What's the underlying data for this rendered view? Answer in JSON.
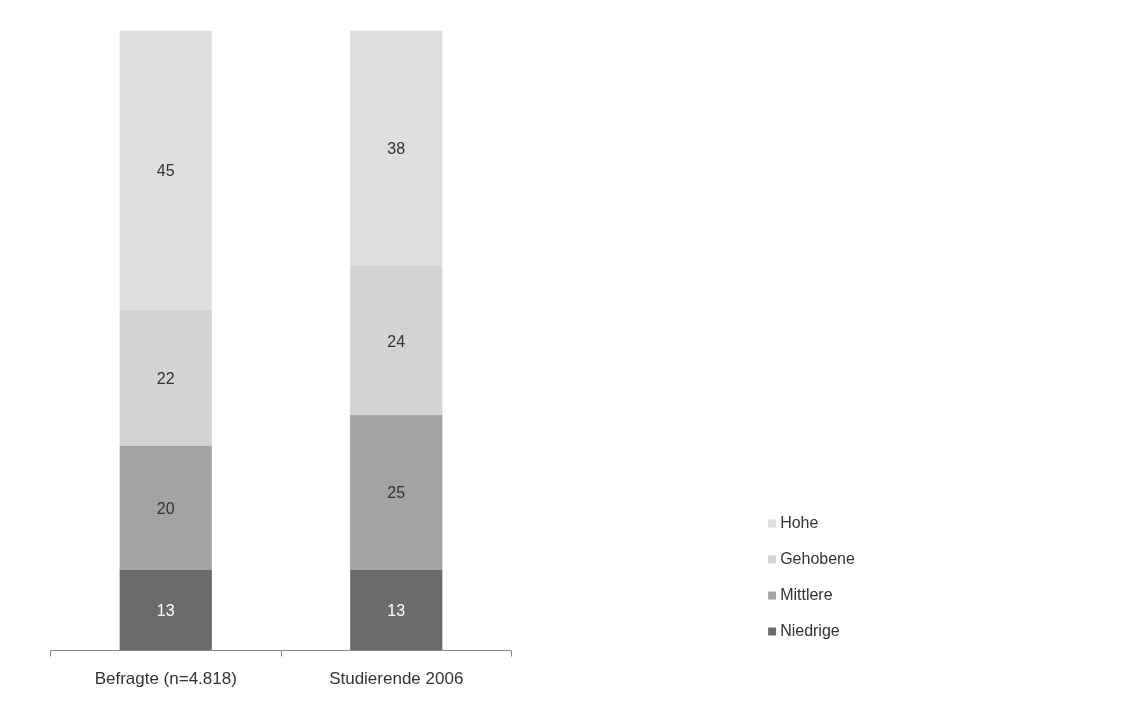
{
  "chart_data": {
    "type": "bar",
    "stacked": true,
    "categories": [
      "Befragte (n=4.818)",
      "Studierende 2006"
    ],
    "series": [
      {
        "name": "Niedrige",
        "color": "#6b6b6b",
        "values": [
          13,
          13
        ]
      },
      {
        "name": "Mittlere",
        "color": "#a3a3a3",
        "values": [
          20,
          25
        ]
      },
      {
        "name": "Gehobene",
        "color": "#d3d3d3",
        "values": [
          22,
          24
        ]
      },
      {
        "name": "Hohe",
        "color": "#dedede",
        "values": [
          45,
          38
        ]
      }
    ],
    "data_labels": true,
    "legend": "bottom right",
    "grid": false,
    "tick_labels": "x"
  }
}
